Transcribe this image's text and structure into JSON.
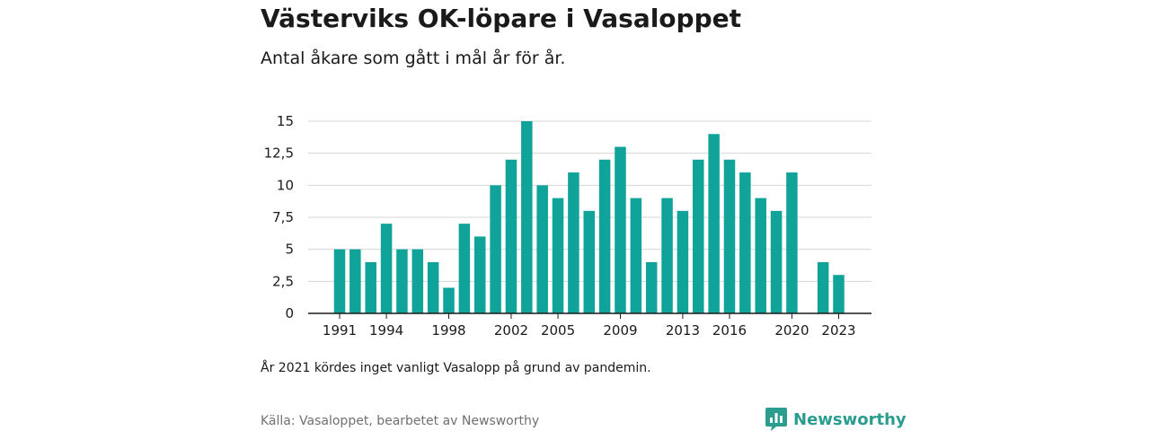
{
  "title": "Västerviks OK-löpare i Vasaloppet",
  "subtitle": "Antal åkare som gått i mål år för år.",
  "note": "År 2021 kördes inget vanligt Vasalopp på grund av pandemin.",
  "source": "Källa: Vasaloppet, bearbetet av Newsworthy",
  "brand": {
    "name": "Newsworthy",
    "icon": "newsworthy-logo-icon",
    "color": "#2a9d8f"
  },
  "colors": {
    "bar": "#0fa39a",
    "grid": "#d6d6d6",
    "axis": "#1a1a1a"
  },
  "chart_data": {
    "type": "bar",
    "x": [
      1991,
      1992,
      1993,
      1994,
      1995,
      1996,
      1997,
      1998,
      1999,
      2000,
      2001,
      2002,
      2003,
      2004,
      2005,
      2006,
      2007,
      2008,
      2009,
      2010,
      2011,
      2012,
      2013,
      2014,
      2015,
      2016,
      2017,
      2018,
      2019,
      2020,
      2021,
      2022,
      2023
    ],
    "values": [
      5,
      5,
      4,
      7,
      5,
      5,
      4,
      2,
      7,
      6,
      10,
      12,
      15,
      10,
      9,
      11,
      8,
      12,
      13,
      9,
      4,
      9,
      8,
      12,
      14,
      12,
      11,
      9,
      8,
      11,
      null,
      4,
      3
    ],
    "x_tick_labels": [
      "1991",
      "1994",
      "1998",
      "2002",
      "2005",
      "2009",
      "2013",
      "2016",
      "2020",
      "2023"
    ],
    "y_ticks": [
      0,
      2.5,
      5,
      7.5,
      10,
      12.5,
      15
    ],
    "y_tick_labels": [
      "0",
      "2,5",
      "5",
      "7,5",
      "10",
      "12,5",
      "15"
    ],
    "ylim": [
      0,
      15
    ],
    "xlabel": "",
    "ylabel": "",
    "grid": true
  }
}
